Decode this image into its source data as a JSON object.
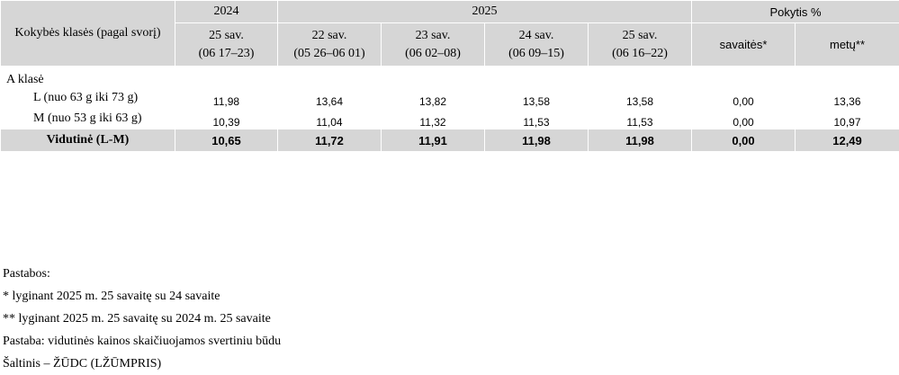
{
  "table": {
    "header": {
      "stub": "Kokybės klasės (pagal svorį)",
      "year_2024": "2024",
      "year_2025": "2025",
      "change": "Pokytis %",
      "cols": [
        {
          "week": "25 sav.",
          "range": "(06 17–23)"
        },
        {
          "week": "22 sav.",
          "range": "(05 26–06 01)"
        },
        {
          "week": "23 sav.",
          "range": "(06 02–08)"
        },
        {
          "week": "24 sav.",
          "range": "(06 09–15)"
        },
        {
          "week": "25 sav.",
          "range": "(06 16–22)"
        }
      ],
      "change_week": "savaitės*",
      "change_year": "metų**"
    },
    "group": "A klasė",
    "rows": [
      {
        "label": "L (nuo 63 g iki 73 g)",
        "values": [
          "11,98",
          "13,64",
          "13,82",
          "13,58",
          "13,58",
          "0,00",
          "13,36"
        ]
      },
      {
        "label": "M (nuo 53 g iki 63 g)",
        "values": [
          "10,39",
          "11,04",
          "11,32",
          "11,53",
          "11,53",
          "0,00",
          "10,97"
        ]
      }
    ],
    "average": {
      "label": "Vidutinė (L-M)",
      "values": [
        "10,65",
        "11,72",
        "11,91",
        "11,98",
        "11,98",
        "0,00",
        "12,49"
      ]
    }
  },
  "notes": [
    "Pastabos:",
    "* lyginant 2025 m. 25 savaitę su 24 savaite",
    "** lyginant 2025 m. 25 savaitę su 2024 m. 25 savaite",
    "Pastaba: vidutinės kainos skaičiuojamos svertiniu būdu",
    "Šaltinis – ŽŪDC (LŽŪMPRIS)"
  ]
}
